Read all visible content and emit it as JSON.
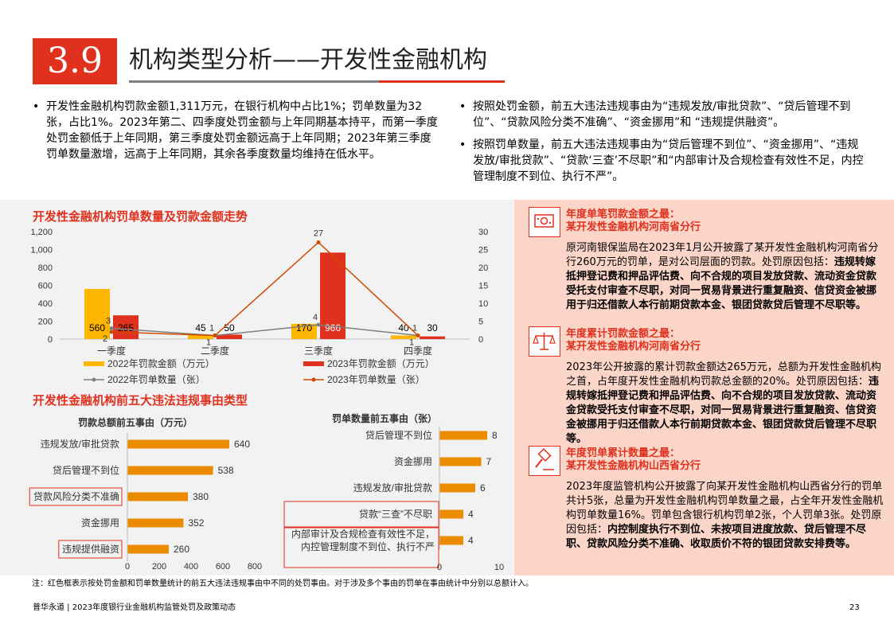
{
  "header": {
    "section_number": "3.9",
    "title": "机构类型分析——开发性金融机构"
  },
  "bullets_left": [
    "开发性金融机构罚款金额1,311万元，在银行机构中占比1%；罚单数量为32张，占比1%。2023年第二、四季度处罚金额与上年同期基本持平，而第一季度处罚金额低于上年同期，第三季度处罚金额远高于上年同期；2023年第三季度罚单数量激增，远高于上年同期，其余各季度数量均维持在低水平。"
  ],
  "bullets_right": [
    "按照处罚金额，前五大违法违规事由为“违规发放/审批贷款”、“贷后管理不到位”、“贷款风险分类不准确”、“资金挪用”和 “违规提供融资”。",
    "按照罚单数量，前五大违法违规事由为“贷后管理不到位”、“资金挪用”、“违规发放/审批贷款”、“贷款‘三查’不尽职”和“内部审计及合规检查有效性不足，内控管理制度不到位、执行不严”。"
  ],
  "chart_data": [
    {
      "type": "bar",
      "title": "开发性金融机构罚单数量及罚款金额走势",
      "categories": [
        "一季度",
        "二季度",
        "三季度",
        "四季度"
      ],
      "series": [
        {
          "name": "2022年罚款金额（万元）",
          "kind": "bar",
          "axis": "left",
          "color": "#ffb600",
          "values": [
            560,
            45,
            170,
            40
          ]
        },
        {
          "name": "2023年罚款金额（万元）",
          "kind": "bar",
          "axis": "left",
          "color": "#e0301e",
          "values": [
            265,
            50,
            966,
            30
          ]
        },
        {
          "name": "2022年罚单数量（张）",
          "kind": "line",
          "axis": "right",
          "color": "#7f7f7f",
          "values": [
            3,
            1,
            4,
            1
          ]
        },
        {
          "name": "2023年罚单数量（张）",
          "kind": "line",
          "axis": "right",
          "color": "#d04a02",
          "values": [
            2,
            1,
            27,
            1
          ]
        }
      ],
      "y_left": {
        "range": [
          0,
          1200
        ],
        "ticks": [
          "0",
          "200",
          "400",
          "600",
          "800",
          "1,000",
          "1,200"
        ]
      },
      "y_right": {
        "range": [
          0,
          30
        ],
        "ticks": [
          "0",
          "5",
          "10",
          "15",
          "20",
          "25",
          "30"
        ]
      },
      "legend": "bottom",
      "grid": false
    },
    {
      "type": "bar",
      "orientation": "horizontal",
      "title": "开发性金融机构前五大违法违规事由类型",
      "subtitle": "罚款总额前五事由（万元）",
      "categories": [
        "违规发放/审批贷款",
        "贷后管理不到位",
        "贷款风险分类不准确",
        "资金挪用",
        "违规提供融资"
      ],
      "values": [
        640,
        538,
        380,
        352,
        260
      ],
      "highlighted": [
        "贷款风险分类不准确",
        "违规提供融资"
      ],
      "xlim": [
        0,
        800
      ],
      "x_ticks": [
        "0",
        "200",
        "400",
        "600",
        "800"
      ],
      "color": "#eb8c00"
    },
    {
      "type": "bar",
      "orientation": "horizontal",
      "subtitle": "罚单数量前五事由（张）",
      "categories": [
        "贷后管理不到位",
        "资金挪用",
        "违规发放/审批贷款",
        "贷款“三查”不尽职",
        "内部审计及合规检查有效性不足，内控管理制度不到位、执行不严"
      ],
      "category_lines": [
        [
          "贷后管理不到位"
        ],
        [
          "资金挪用"
        ],
        [
          "违规发放/审批贷款"
        ],
        [
          "贷款“三查”不尽职"
        ],
        [
          "内部审计及合规检查有效性不足，",
          "内控管理制度不到位、执行不严"
        ]
      ],
      "values": [
        8,
        7,
        6,
        4,
        4
      ],
      "highlighted": [
        "贷款“三查”不尽职",
        "内部审计及合规检查有效性不足，内控管理制度不到位、执行不严"
      ],
      "xlim": [
        0,
        10
      ],
      "x_ticks": [
        "0",
        "10"
      ],
      "color": "#eb8c00"
    }
  ],
  "cases": [
    {
      "icon": "money-bill-icon",
      "heading_lines": [
        "年度单笔罚款金额之最：",
        "某开发性金融机构河南省分行"
      ],
      "body_plain": "原河南银保监局在2023年1月公开披露了某开发性金融机构河南省分行260万元的罚单，是对公司层面的罚款。处罚原因包括：",
      "body_bold": "违规转嫁抵押登记费和押品评估费、向不合规的项目发放贷款、流动资金贷款受托支付审查不尽职，对同一贸易背景进行重复融资、信贷资金被挪用于归还借款人本行前期贷款本金、银团贷款贷后管理不尽职等。"
    },
    {
      "icon": "balance-scale-icon",
      "heading_lines": [
        "年度累计罚款金额之最：",
        "某开发性金融机构河南省分行"
      ],
      "body_plain": "2023年公开披露的累计罚款金额达265万元，总额为开发性金融机构之首，占年度开发性金融机构罚款总金额的20%。处罚原因包括：",
      "body_bold": "违规转嫁抵押登记费和押品评估费、向不合规的项目发放贷款、流动资金贷款受托支付审查不尽职，对同一贸易背景进行重复融资、信贷资金被挪用于归还借款人本行前期贷款本金、银团贷款贷后管理不尽职等。"
    },
    {
      "icon": "gavel-icon",
      "heading_lines": [
        "年度罚单累计数量之最：",
        "某开发性金融机构山西省分行"
      ],
      "body_plain": "2023年度监管机构公开披露了向某开发性金融机构山西省分行的罚单共计5张，总量为开发性金融机构罚单数量之最，占全年开发性金融机构罚单数量16%。罚单包含银行机构罚单2张，个人罚单3张。处罚原因包括：",
      "body_bold": "内控制度执行不到位、未按项目进度放款、贷后管理不尽职、贷款风险分类不准确、收取质价不符的银团贷款安排费等。"
    }
  ],
  "footnote": "注：红色框表示按处罚金额和罚单数量统计的前五大违法违规事由中不同的处罚事由。对于涉及多个事由的罚单在事由统计中分别以总额计入。",
  "footer": {
    "text": "普华永道 | 2023年度银行业金融机构监管处罚及政策动态",
    "page_number": "23"
  },
  "colors": {
    "accent_red": "#e0301e",
    "accent_yellow": "#ffb600",
    "accent_orange": "#eb8c00",
    "line_orange": "#d04a02",
    "grey": "#7f7f7f",
    "panel_grey": "#f2f2f2",
    "panel_pink": "#fbd5c8"
  }
}
